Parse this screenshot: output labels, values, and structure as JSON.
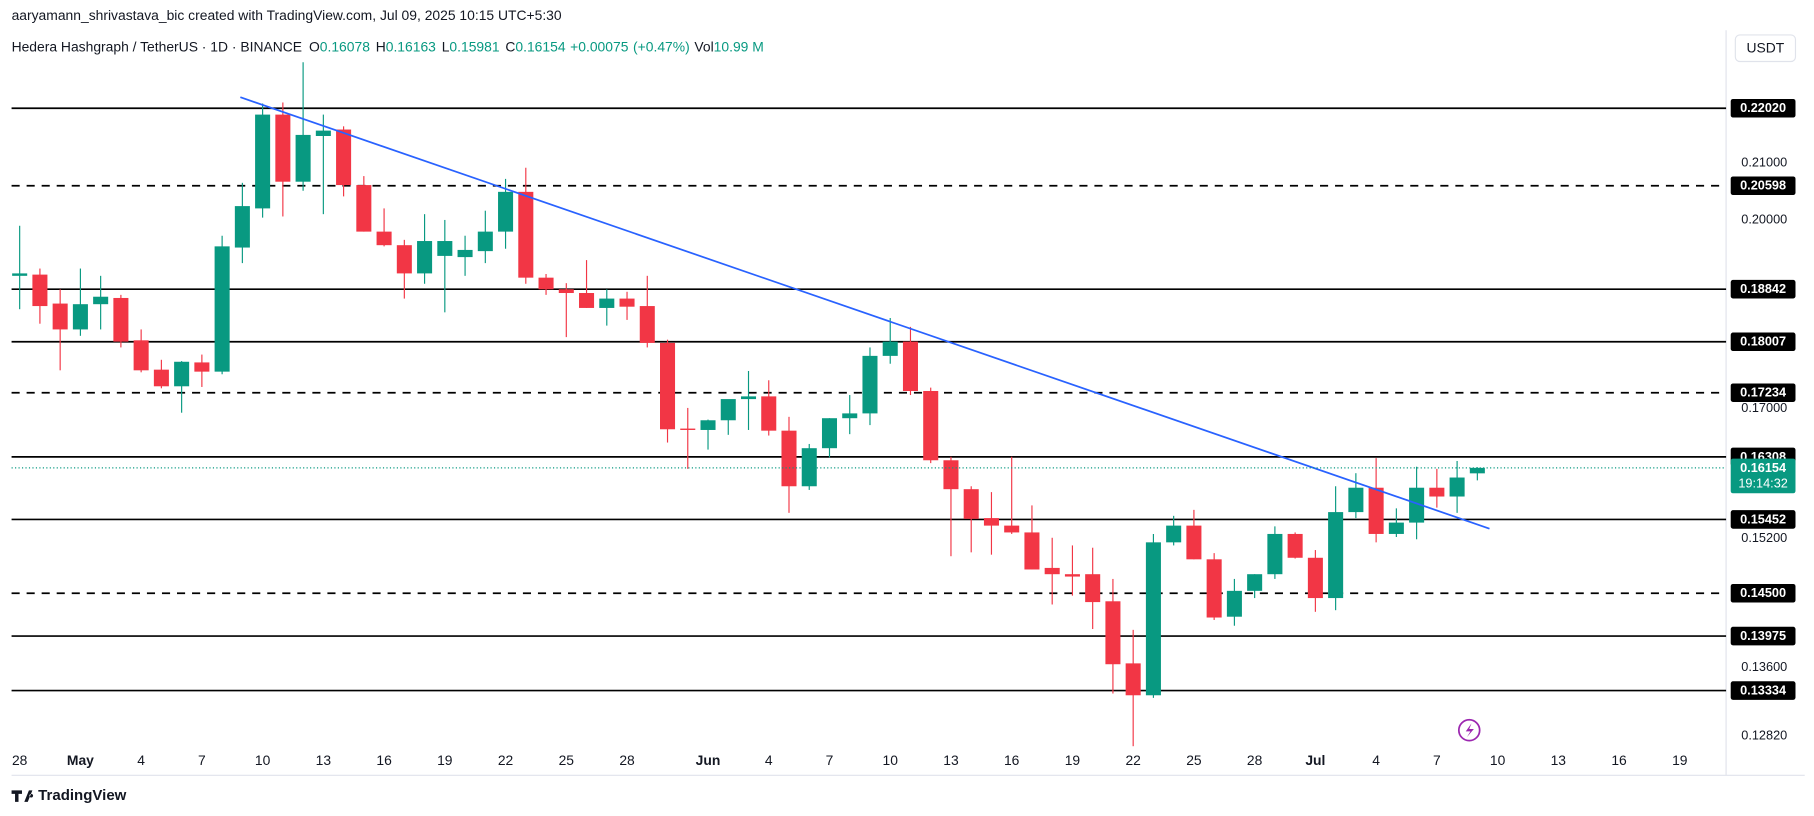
{
  "header": {
    "author_line": "aaryamann_shrivastava_bic created with TradingView.com, Jul 09, 2025 10:15 UTC+5:30",
    "watermark": "TradingView"
  },
  "chart_data": {
    "type": "candlestick",
    "title": "Hedera Hashgraph / TetherUS · 1D · BINANCE",
    "ohlc_labels": [
      "O",
      "H",
      "L",
      "C"
    ],
    "change": "+0.00075",
    "change_pct": "(+0.47%)",
    "vol_label": "Vol",
    "volume": "10.99 M",
    "currency": "USDT",
    "countdown": "19:14:32",
    "up_color": "#089981",
    "down_color": "#f23645",
    "log_scale": true,
    "grid": false,
    "ylim": [
      0.1267,
      0.2355
    ],
    "yticks": [
      {
        "value": 0.21,
        "label": "0.21000"
      },
      {
        "value": 0.2,
        "label": "0.20000"
      },
      {
        "value": 0.17,
        "label": "0.17000"
      },
      {
        "value": 0.152,
        "label": "0.15200"
      },
      {
        "value": 0.136,
        "label": "0.13600"
      },
      {
        "value": 0.1282,
        "label": "0.12820"
      }
    ],
    "categories": [
      "28",
      null,
      null,
      "May",
      null,
      null,
      "4",
      null,
      null,
      "7",
      null,
      null,
      "10",
      null,
      null,
      "13",
      null,
      null,
      "16",
      null,
      null,
      "19",
      null,
      null,
      "22",
      null,
      null,
      "25",
      null,
      null,
      "28",
      null,
      null,
      null,
      "Jun",
      null,
      null,
      "4",
      null,
      null,
      "7",
      null,
      null,
      "10",
      null,
      null,
      "13",
      null,
      null,
      "16",
      null,
      null,
      "19",
      null,
      null,
      "22",
      null,
      null,
      "25",
      null,
      null,
      "28",
      null,
      null,
      "Jul",
      null,
      null,
      "4",
      null,
      null,
      "7",
      null,
      null,
      "10",
      null,
      null,
      "13",
      null,
      null,
      "16",
      null,
      null,
      "19"
    ],
    "open": [
      0.1906,
      0.1908,
      0.1861,
      0.182,
      0.186,
      0.187,
      0.1803,
      0.1758,
      0.1733,
      0.1769,
      0.1755,
      0.1953,
      0.202,
      0.219,
      0.2067,
      0.215,
      0.2162,
      0.2061,
      0.198,
      0.1957,
      0.191,
      0.1939,
      0.1937,
      0.1947,
      0.198,
      0.2049,
      0.1903,
      0.1884,
      0.1878,
      0.1854,
      0.1869,
      0.1857,
      0.1799,
      0.1671,
      0.1669,
      0.1683,
      0.1714,
      0.1718,
      0.1668,
      0.159,
      0.1643,
      0.1686,
      0.1693,
      0.1779,
      0.1801,
      0.1726,
      0.1626,
      0.1586,
      0.1547,
      0.1537,
      0.1528,
      0.1482,
      0.1474,
      0.1474,
      0.144,
      0.1365,
      0.1328,
      0.1515,
      0.1537,
      0.1493,
      0.1421,
      0.1453,
      0.1474,
      0.1526,
      0.1495,
      0.1444,
      0.1555,
      0.1588,
      0.1526,
      0.1541,
      0.1588,
      0.1576,
      0.16078,
      null,
      null,
      null,
      null,
      null,
      null,
      null,
      null,
      null,
      null
    ],
    "high": [
      0.199,
      0.1918,
      0.1884,
      0.1918,
      0.1906,
      0.1875,
      0.182,
      0.1773,
      0.1771,
      0.1781,
      0.1973,
      0.2065,
      0.2211,
      0.2213,
      0.2291,
      0.219,
      0.2168,
      0.2077,
      0.202,
      0.1966,
      0.201,
      0.2,
      0.1973,
      0.2016,
      0.2072,
      0.2092,
      0.1909,
      0.1894,
      0.1932,
      0.1884,
      0.188,
      0.1906,
      0.1804,
      0.1701,
      0.1684,
      0.1713,
      0.1756,
      0.1742,
      0.1688,
      0.1649,
      0.1686,
      0.172,
      0.1792,
      0.1838,
      0.1824,
      0.1731,
      0.1631,
      0.159,
      0.1582,
      0.1631,
      0.1564,
      0.1521,
      0.1511,
      0.1508,
      0.1468,
      0.1405,
      0.1526,
      0.155,
      0.1558,
      0.1501,
      0.1468,
      0.1474,
      0.1536,
      0.1528,
      0.1505,
      0.159,
      0.1608,
      0.1629,
      0.156,
      0.1617,
      0.1614,
      0.1625,
      0.16163,
      null,
      null,
      null,
      null,
      null,
      null,
      null,
      null,
      null,
      null
    ],
    "low": [
      0.1852,
      0.1829,
      0.1757,
      0.181,
      0.182,
      0.1792,
      0.1754,
      0.173,
      0.1694,
      0.1732,
      0.1751,
      0.1927,
      0.2004,
      0.2006,
      0.2051,
      0.201,
      0.2041,
      0.198,
      0.1955,
      0.1869,
      0.1893,
      0.1847,
      0.1906,
      0.1927,
      0.1951,
      0.1893,
      0.1875,
      0.1808,
      0.1854,
      0.1826,
      0.1835,
      0.1792,
      0.1651,
      0.1614,
      0.1641,
      0.1662,
      0.1669,
      0.1661,
      0.1554,
      0.1585,
      0.163,
      0.1663,
      0.1676,
      0.1767,
      0.172,
      0.1622,
      0.1497,
      0.1502,
      0.1499,
      0.1526,
      0.148,
      0.1436,
      0.1447,
      0.1406,
      0.133,
      0.1271,
      0.1325,
      0.1511,
      0.1493,
      0.1417,
      0.141,
      0.1444,
      0.1468,
      0.1494,
      0.1427,
      0.1429,
      0.1547,
      0.1515,
      0.1522,
      0.1519,
      0.1561,
      0.1554,
      0.15981,
      null,
      null,
      null,
      null,
      null,
      null,
      null,
      null,
      null,
      null
    ],
    "close": [
      0.191,
      0.1857,
      0.182,
      0.186,
      0.1872,
      0.1801,
      0.1757,
      0.1733,
      0.177,
      0.1755,
      0.1955,
      0.2024,
      0.219,
      0.2067,
      0.2152,
      0.216,
      0.2061,
      0.198,
      0.1957,
      0.191,
      0.1964,
      0.1964,
      0.1949,
      0.198,
      0.2049,
      0.1903,
      0.1884,
      0.1878,
      0.1854,
      0.1869,
      0.1856,
      0.1799,
      0.167,
      0.1669,
      0.1683,
      0.1714,
      0.1718,
      0.1668,
      0.159,
      0.1643,
      0.1686,
      0.1693,
      0.1779,
      0.1801,
      0.1726,
      0.1626,
      0.1586,
      0.1546,
      0.1537,
      0.1528,
      0.148,
      0.1474,
      0.1471,
      0.1439,
      0.1364,
      0.1328,
      0.1515,
      0.1537,
      0.1493,
      0.142,
      0.1453,
      0.1474,
      0.1526,
      0.1495,
      0.1444,
      0.1555,
      0.1588,
      0.1526,
      0.1541,
      0.1588,
      0.1576,
      0.1602,
      0.16154,
      null,
      null,
      null,
      null,
      null,
      null,
      null,
      null,
      null,
      null
    ],
    "levels": [
      {
        "value": 0.2202,
        "label": "0.22020",
        "style": "solid"
      },
      {
        "value": 0.20598,
        "label": "0.20598",
        "style": "dashed"
      },
      {
        "value": 0.18842,
        "label": "0.18842",
        "style": "solid"
      },
      {
        "value": 0.18007,
        "label": "0.18007",
        "style": "solid"
      },
      {
        "value": 0.17234,
        "label": "0.17234",
        "style": "dashed"
      },
      {
        "value": 0.16308,
        "label": "0.16308",
        "style": "solid"
      },
      {
        "value": 0.15452,
        "label": "0.15452",
        "style": "solid"
      },
      {
        "value": 0.145,
        "label": "0.14500",
        "style": "dashed"
      },
      {
        "value": 0.13975,
        "label": "0.13975",
        "style": "solid"
      },
      {
        "value": 0.13334,
        "label": "0.13334",
        "style": "solid"
      }
    ],
    "trendline": {
      "x": [
        10.9,
        72.6
      ],
      "y": [
        0.2223,
        0.1533
      ],
      "color": "#2962ff"
    }
  }
}
